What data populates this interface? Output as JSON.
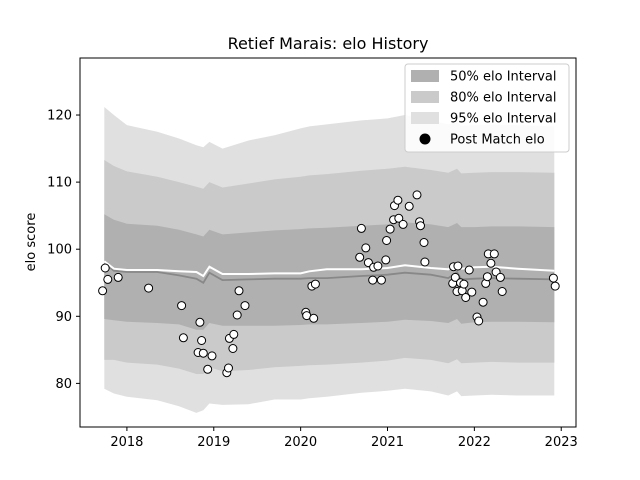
{
  "chart_data": {
    "type": "scatter",
    "title": "Retief Marais: elo History",
    "xlabel": "",
    "ylabel": "elo score",
    "xlim": [
      2017.46,
      2023.17
    ],
    "ylim": [
      73.5,
      128.5
    ],
    "x_ticks": [
      2018,
      2019,
      2020,
      2021,
      2022,
      2023
    ],
    "y_ticks": [
      80,
      90,
      100,
      110,
      120
    ],
    "grid": false,
    "legend": "top-right",
    "legend_entries": [
      {
        "label": "50% elo Interval",
        "color": "#b0b0b0"
      },
      {
        "label": "80% elo Interval",
        "color": "#cacaca"
      },
      {
        "label": "95% elo Interval",
        "color": "#e0e0e0"
      },
      {
        "label": "Post Match elo",
        "color": "#000000"
      }
    ],
    "bands": {
      "x": [
        2017.74,
        2017.85,
        2018.0,
        2018.35,
        2018.6,
        2018.8,
        2018.88,
        2018.95,
        2019.1,
        2019.4,
        2019.7,
        2020.0,
        2020.1,
        2020.3,
        2020.7,
        2021.0,
        2021.2,
        2021.5,
        2021.7,
        2021.8,
        2021.85,
        2022.0,
        2022.2,
        2022.5,
        2022.92
      ],
      "center": [
        97.9,
        96.8,
        96.6,
        96.6,
        96.1,
        95.6,
        95.0,
        96.5,
        95.4,
        95.5,
        95.6,
        95.6,
        95.7,
        95.7,
        96.0,
        96.2,
        96.5,
        96.2,
        95.7,
        96.6,
        95.5,
        95.6,
        95.7,
        95.6,
        95.5
      ],
      "p95_upper": [
        121.2,
        120.0,
        118.5,
        117.5,
        116.5,
        115.5,
        115.2,
        116.0,
        115.0,
        116.2,
        117.0,
        118.0,
        118.3,
        118.6,
        119.2,
        119.5,
        120.0,
        119.2,
        118.6,
        119.0,
        118.4,
        118.5,
        118.6,
        118.5,
        118.3
      ],
      "p95_lower": [
        79.2,
        78.5,
        78.0,
        77.5,
        76.6,
        75.6,
        76.0,
        77.0,
        76.8,
        76.9,
        77.6,
        77.6,
        77.8,
        78.0,
        78.6,
        78.9,
        79.2,
        78.8,
        78.2,
        78.8,
        78.1,
        78.2,
        78.3,
        78.2,
        78.2
      ],
      "p80_upper": [
        113.3,
        112.4,
        111.6,
        110.8,
        110.0,
        109.3,
        109.0,
        110.0,
        109.2,
        109.8,
        110.4,
        110.8,
        111.0,
        111.2,
        111.7,
        112.0,
        112.3,
        111.8,
        111.4,
        112.0,
        111.3,
        111.4,
        111.5,
        111.5,
        111.4
      ],
      "p80_lower": [
        83.5,
        83.5,
        83.1,
        82.8,
        82.2,
        81.4,
        81.4,
        82.4,
        81.8,
        82.0,
        82.4,
        82.6,
        82.7,
        82.8,
        83.1,
        83.4,
        83.8,
        83.5,
        83.0,
        83.6,
        83.0,
        83.1,
        83.2,
        83.1,
        83.1
      ],
      "p50_upper": [
        105.2,
        104.4,
        103.8,
        103.5,
        102.9,
        102.2,
        101.9,
        102.9,
        102.2,
        102.5,
        102.8,
        103.0,
        103.1,
        103.2,
        103.5,
        103.7,
        104.0,
        103.7,
        103.3,
        103.9,
        103.3,
        103.3,
        103.4,
        103.4,
        103.3
      ],
      "p50_lower": [
        89.6,
        89.4,
        89.2,
        89.0,
        88.8,
        88.0,
        88.0,
        89.0,
        88.6,
        88.6,
        88.6,
        88.7,
        88.8,
        88.8,
        89.0,
        89.2,
        89.5,
        89.3,
        89.0,
        89.6,
        88.9,
        89.1,
        89.2,
        89.2,
        89.1
      ],
      "mean_line": [
        98.2,
        97.1,
        96.9,
        96.9,
        96.7,
        96.6,
        96.0,
        97.4,
        96.3,
        96.3,
        96.4,
        96.4,
        96.7,
        97.0,
        97.0,
        97.2,
        97.6,
        97.2,
        97.0,
        98.0,
        97.1,
        97.3,
        97.4,
        97.1,
        96.8
      ]
    },
    "points": [
      {
        "x": 2017.72,
        "y": 93.8
      },
      {
        "x": 2017.75,
        "y": 97.2
      },
      {
        "x": 2017.78,
        "y": 95.5
      },
      {
        "x": 2017.9,
        "y": 95.8
      },
      {
        "x": 2018.25,
        "y": 94.2
      },
      {
        "x": 2018.63,
        "y": 91.6
      },
      {
        "x": 2018.65,
        "y": 86.8
      },
      {
        "x": 2018.82,
        "y": 84.6
      },
      {
        "x": 2018.84,
        "y": 89.1
      },
      {
        "x": 2018.86,
        "y": 86.4
      },
      {
        "x": 2018.88,
        "y": 84.5
      },
      {
        "x": 2018.93,
        "y": 82.1
      },
      {
        "x": 2018.98,
        "y": 84.1
      },
      {
        "x": 2019.15,
        "y": 81.6
      },
      {
        "x": 2019.17,
        "y": 82.3
      },
      {
        "x": 2019.18,
        "y": 86.7
      },
      {
        "x": 2019.22,
        "y": 85.2
      },
      {
        "x": 2019.23,
        "y": 87.3
      },
      {
        "x": 2019.27,
        "y": 90.2
      },
      {
        "x": 2019.29,
        "y": 93.8
      },
      {
        "x": 2019.36,
        "y": 91.6
      },
      {
        "x": 2020.06,
        "y": 90.6
      },
      {
        "x": 2020.07,
        "y": 90.1
      },
      {
        "x": 2020.13,
        "y": 94.5
      },
      {
        "x": 2020.15,
        "y": 89.7
      },
      {
        "x": 2020.17,
        "y": 94.8
      },
      {
        "x": 2020.68,
        "y": 98.8
      },
      {
        "x": 2020.7,
        "y": 103.1
      },
      {
        "x": 2020.75,
        "y": 100.2
      },
      {
        "x": 2020.78,
        "y": 98.0
      },
      {
        "x": 2020.83,
        "y": 95.4
      },
      {
        "x": 2020.84,
        "y": 97.3
      },
      {
        "x": 2020.89,
        "y": 97.5
      },
      {
        "x": 2020.93,
        "y": 95.4
      },
      {
        "x": 2020.98,
        "y": 98.4
      },
      {
        "x": 2020.99,
        "y": 101.3
      },
      {
        "x": 2021.03,
        "y": 103.0
      },
      {
        "x": 2021.07,
        "y": 104.4
      },
      {
        "x": 2021.08,
        "y": 106.5
      },
      {
        "x": 2021.12,
        "y": 107.3
      },
      {
        "x": 2021.13,
        "y": 104.6
      },
      {
        "x": 2021.18,
        "y": 103.7
      },
      {
        "x": 2021.25,
        "y": 106.4
      },
      {
        "x": 2021.34,
        "y": 108.1
      },
      {
        "x": 2021.37,
        "y": 104.1
      },
      {
        "x": 2021.38,
        "y": 103.5
      },
      {
        "x": 2021.42,
        "y": 101.0
      },
      {
        "x": 2021.43,
        "y": 98.1
      },
      {
        "x": 2021.75,
        "y": 94.9
      },
      {
        "x": 2021.76,
        "y": 97.4
      },
      {
        "x": 2021.78,
        "y": 95.8
      },
      {
        "x": 2021.8,
        "y": 93.7
      },
      {
        "x": 2021.81,
        "y": 97.5
      },
      {
        "x": 2021.84,
        "y": 95.0
      },
      {
        "x": 2021.86,
        "y": 93.8
      },
      {
        "x": 2021.88,
        "y": 94.8
      },
      {
        "x": 2021.9,
        "y": 92.8
      },
      {
        "x": 2021.94,
        "y": 96.9
      },
      {
        "x": 2021.97,
        "y": 93.6
      },
      {
        "x": 2022.03,
        "y": 89.9
      },
      {
        "x": 2022.05,
        "y": 89.3
      },
      {
        "x": 2022.1,
        "y": 92.1
      },
      {
        "x": 2022.13,
        "y": 94.9
      },
      {
        "x": 2022.15,
        "y": 95.9
      },
      {
        "x": 2022.16,
        "y": 99.3
      },
      {
        "x": 2022.19,
        "y": 97.9
      },
      {
        "x": 2022.23,
        "y": 99.3
      },
      {
        "x": 2022.25,
        "y": 96.6
      },
      {
        "x": 2022.3,
        "y": 95.8
      },
      {
        "x": 2022.32,
        "y": 93.7
      },
      {
        "x": 2022.91,
        "y": 95.7
      },
      {
        "x": 2022.93,
        "y": 94.5
      }
    ]
  }
}
